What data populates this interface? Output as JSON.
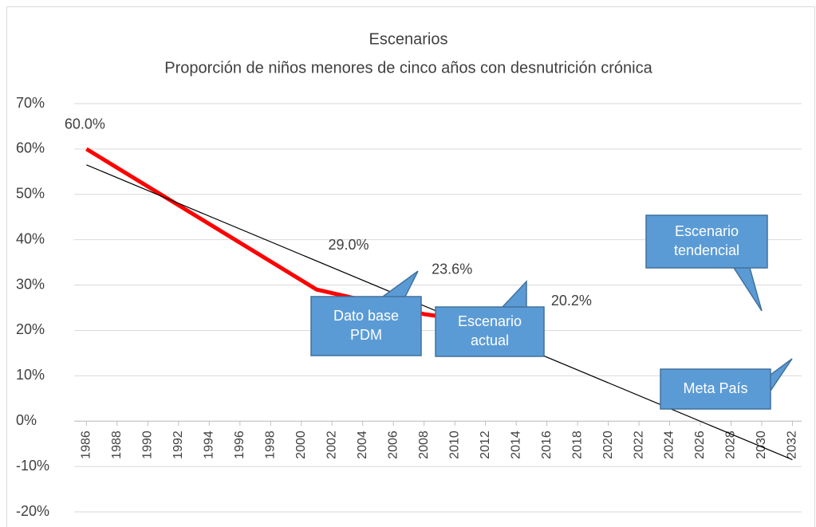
{
  "chart_data": {
    "type": "line",
    "title": "Escenarios",
    "subtitle": "Proporción de niños menores de cinco años con desnutrición crónica",
    "series": [
      {
        "color": "#ff0000",
        "x": [
          1986,
          2001,
          2008,
          2015
        ],
        "values": [
          60,
          29,
          23.6,
          20.2
        ],
        "value_labels": [
          "60.0%",
          "29.0%",
          "23.6%",
          "20.2%"
        ]
      },
      {
        "color": "#000000",
        "x": [
          1986,
          2032
        ],
        "values": [
          56.5,
          -8.5
        ]
      }
    ],
    "annotations": [
      "Dato base PDM",
      "Escenario actual",
      "Escenario tendencial",
      "Meta País"
    ],
    "xlim": [
      1985.2,
      2032.6
    ],
    "xticks": [
      1986,
      1988,
      1990,
      1992,
      1994,
      1996,
      1998,
      2000,
      2002,
      2004,
      2006,
      2008,
      2010,
      2012,
      2014,
      2016,
      2018,
      2020,
      2022,
      2024,
      2026,
      2028,
      2030,
      2032
    ],
    "ylim": [
      -20,
      70
    ],
    "yticks": [
      {
        "value": -20,
        "label": "-20%"
      },
      {
        "value": -10,
        "label": "-10%"
      },
      {
        "value": 0,
        "label": "0%"
      },
      {
        "value": 10,
        "label": "10%"
      },
      {
        "value": 20,
        "label": "20%"
      },
      {
        "value": 30,
        "label": "30%"
      },
      {
        "value": 40,
        "label": "40%"
      },
      {
        "value": 50,
        "label": "50%"
      },
      {
        "value": 60,
        "label": "60%"
      },
      {
        "value": 70,
        "label": "70%"
      }
    ],
    "grid": true
  }
}
